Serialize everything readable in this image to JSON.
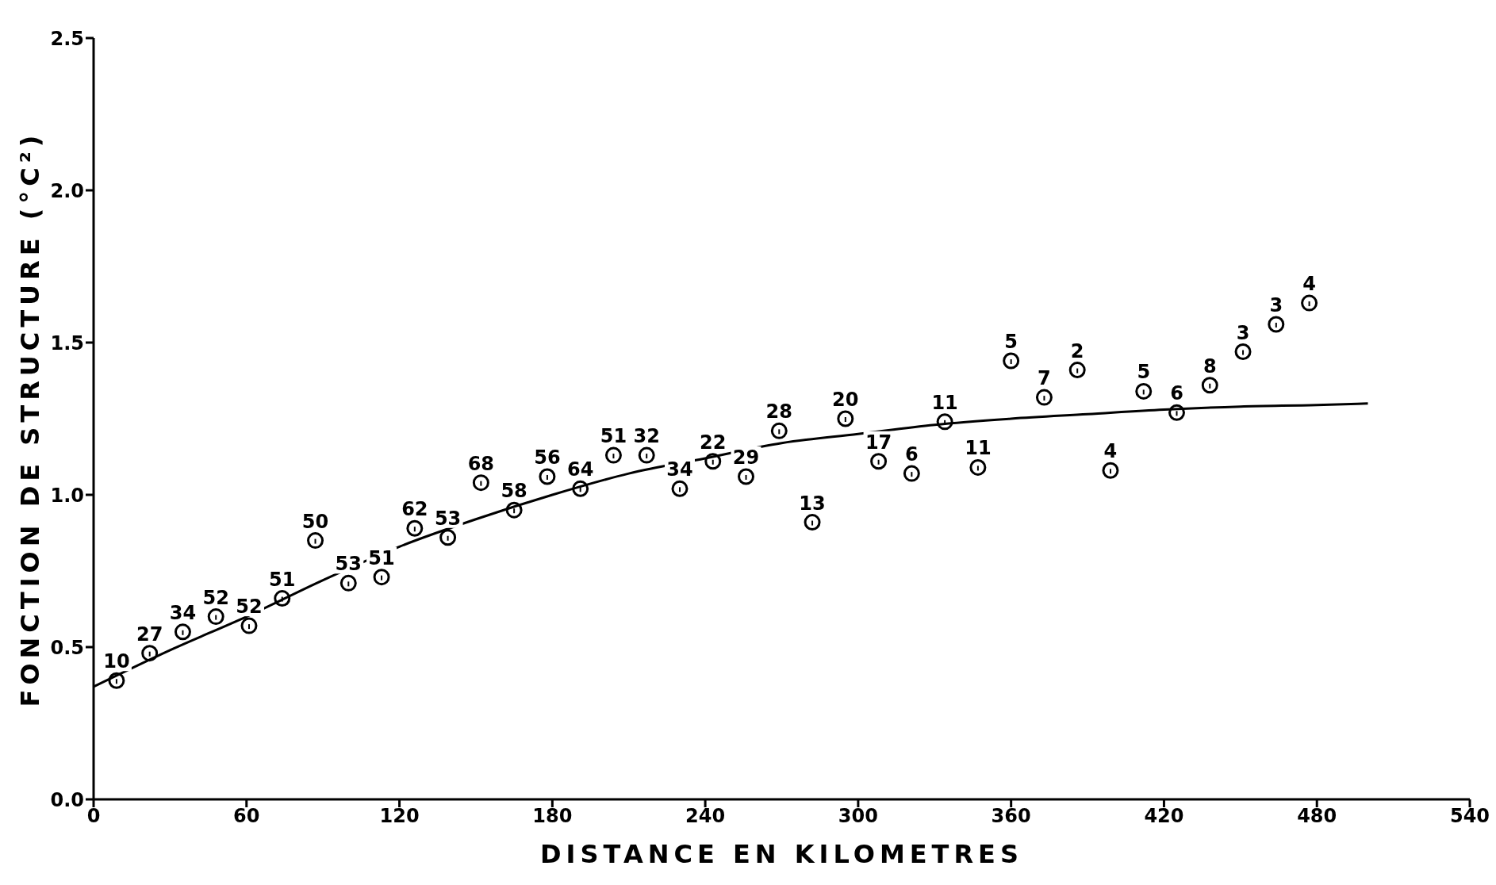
{
  "chart_data": {
    "type": "scatter",
    "xlabel": "DISTANCE EN KILOMETRES",
    "ylabel": "FONCTION DE STRUCTURE (°C²)",
    "xlim": [
      0,
      540
    ],
    "xticks": [
      0,
      60,
      120,
      180,
      240,
      300,
      360,
      420,
      480,
      540
    ],
    "ylim": [
      0,
      2.5
    ],
    "yticks": [
      {
        "value": 0,
        "label": "0.0"
      },
      0.5,
      {
        "value": 1,
        "label": "1.0"
      },
      1.5,
      {
        "value": 2,
        "label": "2.0"
      },
      2.5
    ],
    "grid": false,
    "series": [
      {
        "marker": "circle",
        "color": "#000000",
        "x": [
          9,
          22,
          35,
          48,
          61,
          74,
          87,
          100,
          113,
          126,
          139,
          152,
          165,
          178,
          191,
          204,
          217,
          230,
          243,
          256,
          269,
          282,
          295,
          308,
          321,
          334,
          347,
          360,
          373,
          386,
          399,
          412,
          425,
          438,
          451,
          464,
          477
        ],
        "values": [
          0.39,
          0.48,
          0.55,
          0.6,
          0.57,
          0.66,
          0.85,
          0.71,
          0.73,
          0.89,
          0.86,
          1.04,
          0.95,
          1.06,
          1.02,
          1.13,
          1.13,
          1.02,
          1.11,
          1.06,
          1.21,
          0.91,
          1.25,
          1.11,
          1.07,
          1.24,
          1.09,
          1.44,
          1.32,
          1.41,
          1.08,
          1.34,
          1.27,
          1.36,
          1.47,
          1.56,
          1.63
        ]
      },
      {
        "type": "line",
        "color": "#000000",
        "x": [
          0,
          30,
          60,
          90,
          120,
          150,
          180,
          210,
          240,
          270,
          300,
          330,
          360,
          390,
          420,
          450,
          480,
          500
        ],
        "values": [
          0.37,
          0.49,
          0.6,
          0.72,
          0.83,
          0.92,
          1.0,
          1.07,
          1.12,
          1.17,
          1.2,
          1.23,
          1.25,
          1.265,
          1.28,
          1.29,
          1.295,
          1.3
        ]
      }
    ],
    "annotations": [
      {
        "text": "10",
        "x": 9,
        "y": 0.39
      },
      {
        "text": "27",
        "x": 22,
        "y": 0.48
      },
      {
        "text": "34",
        "x": 35,
        "y": 0.55
      },
      {
        "text": "52",
        "x": 48,
        "y": 0.6
      },
      {
        "text": "52",
        "x": 61,
        "y": 0.57
      },
      {
        "text": "51",
        "x": 74,
        "y": 0.66
      },
      {
        "text": "50",
        "x": 87,
        "y": 0.85
      },
      {
        "text": "53",
        "x": 100,
        "y": 0.71
      },
      {
        "text": "51",
        "x": 113,
        "y": 0.73
      },
      {
        "text": "62",
        "x": 126,
        "y": 0.89
      },
      {
        "text": "53",
        "x": 139,
        "y": 0.86
      },
      {
        "text": "68",
        "x": 152,
        "y": 1.04
      },
      {
        "text": "58",
        "x": 165,
        "y": 0.95
      },
      {
        "text": "56",
        "x": 178,
        "y": 1.06
      },
      {
        "text": "64",
        "x": 191,
        "y": 1.02
      },
      {
        "text": "51",
        "x": 204,
        "y": 1.13
      },
      {
        "text": "32",
        "x": 217,
        "y": 1.13
      },
      {
        "text": "34",
        "x": 230,
        "y": 1.02
      },
      {
        "text": "22",
        "x": 243,
        "y": 1.11
      },
      {
        "text": "29",
        "x": 256,
        "y": 1.06
      },
      {
        "text": "28",
        "x": 269,
        "y": 1.21
      },
      {
        "text": "13",
        "x": 282,
        "y": 0.91
      },
      {
        "text": "20",
        "x": 295,
        "y": 1.25
      },
      {
        "text": "17",
        "x": 308,
        "y": 1.11
      },
      {
        "text": "6",
        "x": 321,
        "y": 1.07
      },
      {
        "text": "11",
        "x": 334,
        "y": 1.24
      },
      {
        "text": "11",
        "x": 347,
        "y": 1.09
      },
      {
        "text": "5",
        "x": 360,
        "y": 1.44
      },
      {
        "text": "7",
        "x": 373,
        "y": 1.32
      },
      {
        "text": "2",
        "x": 386,
        "y": 1.41
      },
      {
        "text": "4",
        "x": 399,
        "y": 1.08
      },
      {
        "text": "5",
        "x": 412,
        "y": 1.34
      },
      {
        "text": "6",
        "x": 425,
        "y": 1.27
      },
      {
        "text": "8",
        "x": 438,
        "y": 1.36
      },
      {
        "text": "3",
        "x": 451,
        "y": 1.47
      },
      {
        "text": "3",
        "x": 464,
        "y": 1.56
      },
      {
        "text": "4",
        "x": 477,
        "y": 1.63
      }
    ]
  }
}
